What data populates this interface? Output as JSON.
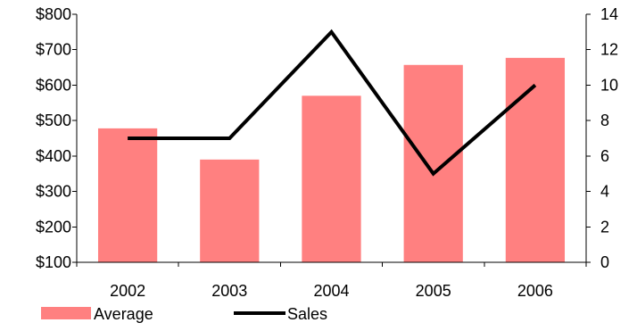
{
  "chart_data": {
    "type": "bar",
    "categories": [
      "2002",
      "2003",
      "2004",
      "2005",
      "2006"
    ],
    "series": [
      {
        "name": "Average",
        "type": "bar",
        "axis": "left",
        "color": "#FF8080",
        "values": [
          478,
          390,
          570,
          657,
          677
        ]
      },
      {
        "name": "Sales",
        "type": "line",
        "axis": "right",
        "color": "#000000",
        "values": [
          7,
          7,
          13,
          5,
          10
        ]
      }
    ],
    "y_left": {
      "ylim": [
        100,
        800
      ],
      "ticks": [
        100,
        200,
        300,
        400,
        500,
        600,
        700,
        800
      ],
      "tick_labels": [
        "$100",
        "$200",
        "$300",
        "$400",
        "$500",
        "$600",
        "$700",
        "$800"
      ]
    },
    "y_right": {
      "ylim": [
        0,
        14
      ],
      "ticks": [
        0,
        2,
        4,
        6,
        8,
        10,
        12,
        14
      ],
      "tick_labels": [
        "0",
        "2",
        "4",
        "6",
        "8",
        "10",
        "12",
        "14"
      ]
    },
    "grid": false,
    "legend": {
      "position": "bottom-left",
      "entries": [
        "Average",
        "Sales"
      ]
    }
  }
}
